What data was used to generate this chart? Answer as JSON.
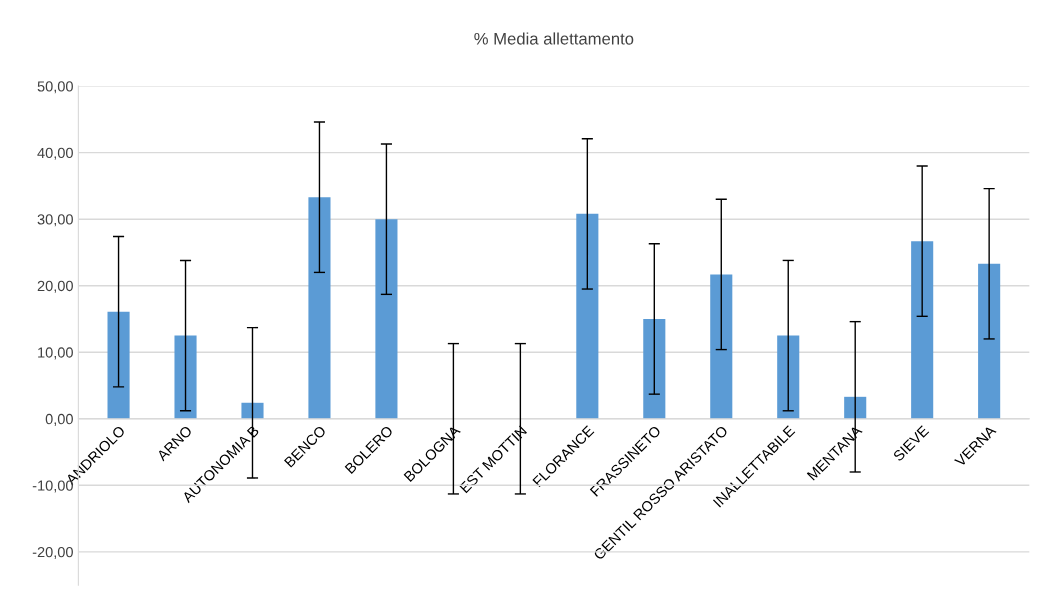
{
  "chart_data": {
    "type": "bar",
    "title": "% Media allettamento",
    "categories": [
      "ANDRIOLO",
      "ARNO",
      "AUTONOMIA B",
      "BENCO",
      "BOLERO",
      "BOLOGNA",
      "EST MOTTIN",
      "FLORANCE",
      "FRASSINETO",
      "GENTIL ROSSO ARISTATO",
      "INALLETTABILE",
      "MENTANA",
      "SIEVE",
      "VERNA"
    ],
    "series": [
      {
        "color": "#5b9bd5",
        "values": [
          16.1,
          12.5,
          2.4,
          33.3,
          30.0,
          0,
          0,
          30.8,
          15.0,
          21.7,
          12.5,
          3.3,
          26.7,
          23.3
        ],
        "errors": [
          11.3,
          11.3,
          11.3,
          11.3,
          11.3,
          11.3,
          11.3,
          11.3,
          11.3,
          11.3,
          11.3,
          11.3,
          11.3,
          11.3
        ]
      }
    ],
    "ylim": [
      -25,
      50
    ],
    "yticks": [
      {
        "value": -20,
        "label": "-20,00"
      },
      {
        "value": -10,
        "label": "-10,00"
      },
      {
        "value": 0,
        "label": "0,00"
      },
      {
        "value": 10,
        "label": "10,00"
      },
      {
        "value": 20,
        "label": "20,00"
      },
      {
        "value": 30,
        "label": "30,00"
      },
      {
        "value": 40,
        "label": "40,00"
      },
      {
        "value": 50,
        "label": "50,00"
      }
    ],
    "grid": "y"
  }
}
